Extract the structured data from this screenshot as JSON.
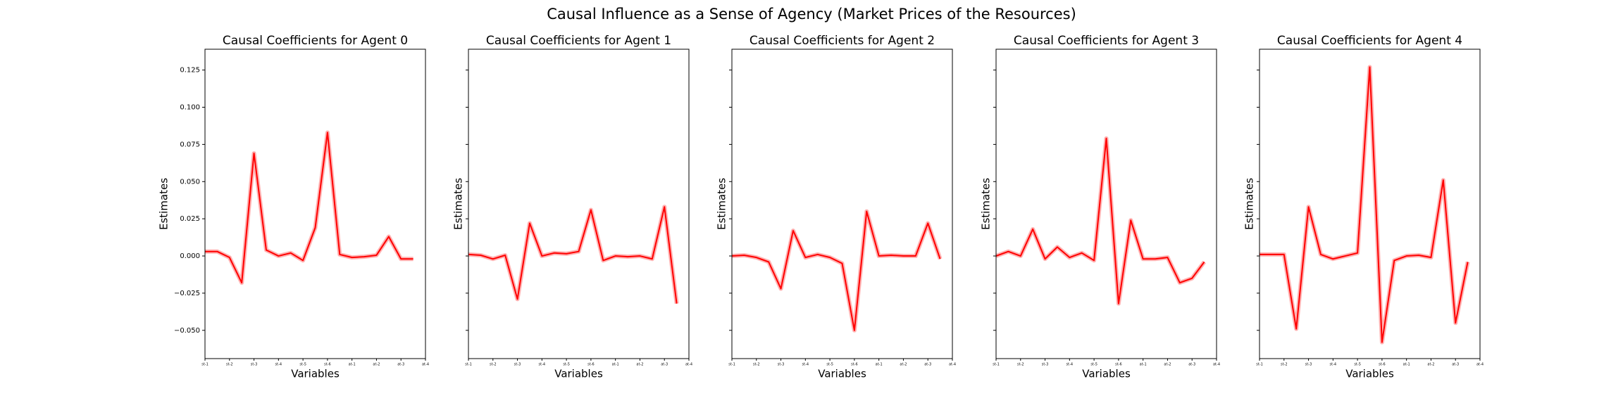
{
  "title": "Causal Influence as a Sense of Agency (Market Prices of the Resources)",
  "chart_data": [
    {
      "type": "line",
      "title": "Causal Coefficients for Agent 0",
      "xlabel": "Variables",
      "ylabel": "Estimates",
      "x": [
        0,
        1,
        2,
        3,
        4,
        5,
        6,
        7,
        8,
        9,
        10,
        11,
        12,
        13,
        14,
        15,
        16,
        17
      ],
      "xlim": [
        0,
        18
      ],
      "xticks": [
        {
          "value": 0,
          "label": "st-1"
        },
        {
          "value": 2,
          "label": "st-2"
        },
        {
          "value": 4,
          "label": "st-3"
        },
        {
          "value": 6,
          "label": "st-4"
        },
        {
          "value": 8,
          "label": "st-5"
        },
        {
          "value": 10,
          "label": "st-6"
        },
        {
          "value": 12,
          "label": "at-1"
        },
        {
          "value": 14,
          "label": "at-2"
        },
        {
          "value": 16,
          "label": "at-3"
        },
        {
          "value": 18,
          "label": "at-4"
        }
      ],
      "ylim": [
        -0.069,
        0.139
      ],
      "yticks": [
        {
          "value": -0.05,
          "label": "−0.050"
        },
        {
          "value": -0.025,
          "label": "−0.025"
        },
        {
          "value": 0,
          "label": "0.000"
        },
        {
          "value": 0.025,
          "label": "0.025"
        },
        {
          "value": 0.05,
          "label": "0.050"
        },
        {
          "value": 0.075,
          "label": "0.075"
        },
        {
          "value": 0.1,
          "label": "0.100"
        },
        {
          "value": 0.125,
          "label": "0.125"
        }
      ],
      "series": [
        {
          "color": "#ff0000",
          "values": [
            0.003,
            0.003,
            -0.001,
            -0.018,
            0.069,
            0.004,
            0,
            0.002,
            -0.003,
            0.019,
            0.083,
            0.001,
            -0.001,
            -0.0005,
            0.0005,
            0.013,
            -0.002,
            -0.002
          ]
        }
      ]
    },
    {
      "type": "line",
      "title": "Causal Coefficients for Agent 1",
      "xlabel": "Variables",
      "ylabel": "Estimates",
      "x": [
        0,
        1,
        2,
        3,
        4,
        5,
        6,
        7,
        8,
        9,
        10,
        11,
        12,
        13,
        14,
        15,
        16,
        17
      ],
      "xlim": [
        0,
        18
      ],
      "xticks": [
        {
          "value": 0,
          "label": "st-1"
        },
        {
          "value": 2,
          "label": "st-2"
        },
        {
          "value": 4,
          "label": "st-3"
        },
        {
          "value": 6,
          "label": "st-4"
        },
        {
          "value": 8,
          "label": "st-5"
        },
        {
          "value": 10,
          "label": "st-6"
        },
        {
          "value": 12,
          "label": "at-1"
        },
        {
          "value": 14,
          "label": "at-2"
        },
        {
          "value": 16,
          "label": "at-3"
        },
        {
          "value": 18,
          "label": "at-4"
        }
      ],
      "ylim": [
        -0.069,
        0.139
      ],
      "yticks": [
        -0.05,
        -0.025,
        0,
        0.025,
        0.05,
        0.075,
        0.1,
        0.125
      ],
      "series": [
        {
          "color": "#ff0000",
          "values": [
            0.001,
            0.0005,
            -0.002,
            0.0005,
            -0.029,
            0.022,
            0,
            0.002,
            0.0015,
            0.003,
            0.031,
            -0.003,
            0,
            -0.0005,
            0,
            -0.002,
            0.033,
            -0.032
          ]
        }
      ]
    },
    {
      "type": "line",
      "title": "Causal Coefficients for Agent 2",
      "xlabel": "Variables",
      "ylabel": "Estimates",
      "x": [
        0,
        1,
        2,
        3,
        4,
        5,
        6,
        7,
        8,
        9,
        10,
        11,
        12,
        13,
        14,
        15,
        16,
        17
      ],
      "xlim": [
        0,
        18
      ],
      "xticks": [
        {
          "value": 0,
          "label": "st-1"
        },
        {
          "value": 2,
          "label": "st-2"
        },
        {
          "value": 4,
          "label": "st-3"
        },
        {
          "value": 6,
          "label": "st-4"
        },
        {
          "value": 8,
          "label": "st-5"
        },
        {
          "value": 10,
          "label": "st-6"
        },
        {
          "value": 12,
          "label": "at-1"
        },
        {
          "value": 14,
          "label": "at-2"
        },
        {
          "value": 16,
          "label": "at-3"
        },
        {
          "value": 18,
          "label": "at-4"
        }
      ],
      "ylim": [
        -0.069,
        0.139
      ],
      "yticks": [
        -0.05,
        -0.025,
        0,
        0.025,
        0.05,
        0.075,
        0.1,
        0.125
      ],
      "series": [
        {
          "color": "#ff0000",
          "values": [
            0,
            0.0005,
            -0.001,
            -0.004,
            -0.022,
            0.017,
            -0.001,
            0.001,
            -0.001,
            -0.005,
            -0.05,
            0.03,
            0,
            0.0005,
            0,
            0,
            0.022,
            -0.002
          ]
        }
      ]
    },
    {
      "type": "line",
      "title": "Causal Coefficients for Agent 3",
      "xlabel": "Variables",
      "ylabel": "Estimates",
      "x": [
        0,
        1,
        2,
        3,
        4,
        5,
        6,
        7,
        8,
        9,
        10,
        11,
        12,
        13,
        14,
        15,
        16,
        17
      ],
      "xlim": [
        0,
        18
      ],
      "xticks": [
        {
          "value": 0,
          "label": "st-1"
        },
        {
          "value": 2,
          "label": "st-2"
        },
        {
          "value": 4,
          "label": "st-3"
        },
        {
          "value": 6,
          "label": "st-4"
        },
        {
          "value": 8,
          "label": "st-5"
        },
        {
          "value": 10,
          "label": "st-6"
        },
        {
          "value": 12,
          "label": "at-1"
        },
        {
          "value": 14,
          "label": "at-2"
        },
        {
          "value": 16,
          "label": "at-3"
        },
        {
          "value": 18,
          "label": "at-4"
        }
      ],
      "ylim": [
        -0.069,
        0.139
      ],
      "yticks": [
        -0.05,
        -0.025,
        0,
        0.025,
        0.05,
        0.075,
        0.1,
        0.125
      ],
      "series": [
        {
          "color": "#ff0000",
          "values": [
            0,
            0.003,
            0,
            0.018,
            -0.002,
            0.006,
            -0.001,
            0.002,
            -0.003,
            0.079,
            -0.032,
            0.024,
            -0.002,
            -0.002,
            -0.001,
            -0.018,
            -0.015,
            -0.004
          ]
        }
      ]
    },
    {
      "type": "line",
      "title": "Causal Coefficients for Agent 4",
      "xlabel": "Variables",
      "ylabel": "Estimates",
      "x": [
        0,
        1,
        2,
        3,
        4,
        5,
        6,
        7,
        8,
        9,
        10,
        11,
        12,
        13,
        14,
        15,
        16,
        17
      ],
      "xlim": [
        0,
        18
      ],
      "xticks": [
        {
          "value": 0,
          "label": "st-1"
        },
        {
          "value": 2,
          "label": "st-2"
        },
        {
          "value": 4,
          "label": "st-3"
        },
        {
          "value": 6,
          "label": "st-4"
        },
        {
          "value": 8,
          "label": "st-5"
        },
        {
          "value": 10,
          "label": "st-6"
        },
        {
          "value": 12,
          "label": "at-1"
        },
        {
          "value": 14,
          "label": "at-2"
        },
        {
          "value": 16,
          "label": "at-3"
        },
        {
          "value": 18,
          "label": "at-4"
        }
      ],
      "ylim": [
        -0.069,
        0.139
      ],
      "yticks": [
        -0.05,
        -0.025,
        0,
        0.025,
        0.05,
        0.075,
        0.1,
        0.125
      ],
      "series": [
        {
          "color": "#ff0000",
          "values": [
            0.001,
            0.001,
            0.001,
            -0.049,
            0.033,
            0.001,
            -0.002,
            0,
            0.002,
            0.127,
            -0.058,
            -0.003,
            0,
            0.0005,
            -0.001,
            0.051,
            -0.045,
            -0.004
          ]
        }
      ]
    }
  ]
}
